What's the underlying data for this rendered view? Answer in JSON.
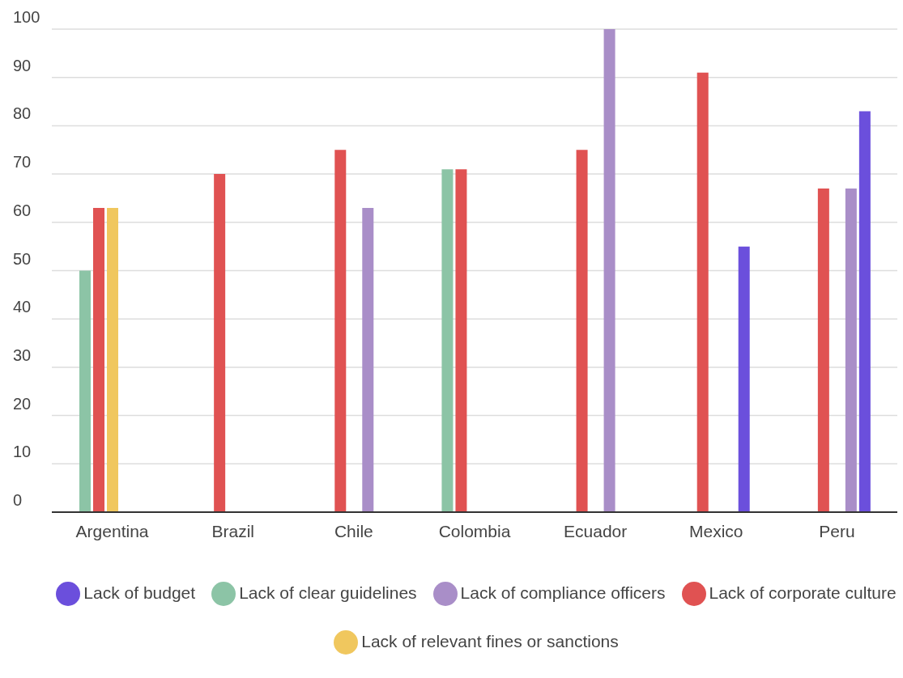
{
  "chart_data": {
    "type": "bar",
    "categories": [
      "Argentina",
      "Brazil",
      "Chile",
      "Colombia",
      "Ecuador",
      "Mexico",
      "Peru"
    ],
    "series": [
      {
        "name": "Lack of clear guidelines",
        "color": "#8cc4a6",
        "values": [
          50,
          null,
          null,
          71,
          null,
          null,
          null
        ]
      },
      {
        "name": "Lack of corporate culture",
        "color": "#e05252",
        "values": [
          63,
          70,
          75,
          71,
          75,
          91,
          67
        ]
      },
      {
        "name": "Lack of relevant fines or sanctions",
        "color": "#f0c75e",
        "values": [
          63,
          null,
          null,
          null,
          null,
          null,
          null
        ]
      },
      {
        "name": "Lack of compliance officers",
        "color": "#a98ec8",
        "values": [
          null,
          null,
          63,
          null,
          100,
          null,
          67
        ]
      },
      {
        "name": "Lack of budget",
        "color": "#6b4fdc",
        "values": [
          null,
          null,
          null,
          null,
          null,
          55,
          83
        ]
      }
    ],
    "ylim": [
      0,
      100
    ],
    "yticks": [
      0,
      10,
      20,
      30,
      40,
      50,
      60,
      70,
      80,
      90,
      100
    ],
    "grid": "y",
    "legend": "bottom"
  }
}
